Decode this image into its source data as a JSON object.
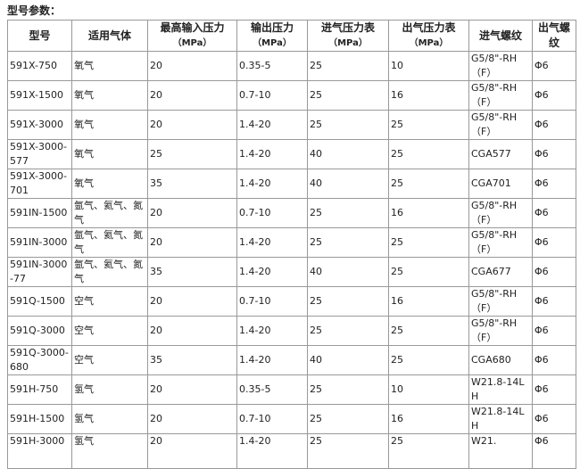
{
  "title": "型号参数：",
  "table": {
    "header": [
      [
        "型号"
      ],
      [
        "适用气体"
      ],
      [
        "最高输入压力",
        "（MPa）"
      ],
      [
        "输出压力",
        "（MPa）"
      ],
      [
        "进气压力表",
        "（MPa）"
      ],
      [
        "出气压力表",
        "（MPa）"
      ],
      [
        "进气螺纹"
      ],
      [
        "出气螺纹"
      ]
    ],
    "rows": [
      [
        "591X-750",
        "氧气",
        "20",
        "0.35-5",
        "25",
        "10",
        "G5/8\"-RH（F）",
        "Φ6"
      ],
      [
        "591X-1500",
        "氧气",
        "20",
        "0.7-10",
        "25",
        "16",
        "G5/8\"-RH（F）",
        "Φ6"
      ],
      [
        "591X-3000",
        "氧气",
        "20",
        "1.4-20",
        "25",
        "25",
        "G5/8\"-RH（F）",
        "Φ6"
      ],
      [
        "591X-3000-577",
        "氧气",
        "25",
        "1.4-20",
        "40",
        "25",
        "CGA577",
        "Φ6"
      ],
      [
        "591X-3000-701",
        "氧气",
        "35",
        "1.4-20",
        "40",
        "25",
        "CGA701",
        "Φ6"
      ],
      [
        "591IN-1500",
        "氩气、氦气、氮气",
        "20",
        "0.7-10",
        "25",
        "16",
        "G5/8\"-RH（F）",
        "Φ6"
      ],
      [
        "591IN-3000",
        "氩气、氦气、氮气",
        "20",
        "1.4-20",
        "25",
        "25",
        "G5/8\"-RH（F）",
        "Φ6"
      ],
      [
        "591IN-3000-77",
        "氩气、氦气、氮气",
        "35",
        "1.4-20",
        "40",
        "25",
        "CGA677",
        "Φ6"
      ],
      [
        "591Q-1500",
        "空气",
        "20",
        "0.7-10",
        "25",
        "16",
        "G5/8\"-RH（F）",
        "Φ6"
      ],
      [
        "591Q-3000",
        "空气",
        "20",
        "1.4-20",
        "25",
        "25",
        "G5/8\"-RH（F）",
        "Φ6"
      ],
      [
        "591Q-3000-680",
        "空气",
        "35",
        "1.4-20",
        "40",
        "25",
        "CGA680",
        "Φ6"
      ],
      [
        "591H-750",
        "氢气",
        "20",
        "0.35-5",
        "25",
        "10",
        "W21.8-14LH",
        "Φ6"
      ],
      [
        "591H-1500",
        "氢气",
        "20",
        "0.7-10",
        "25",
        "16",
        "W21.8-14LH",
        "Φ6"
      ],
      [
        "591H-3000",
        "氢气",
        "20",
        "1.4-20",
        "25",
        "25",
        "W21.",
        "Φ6"
      ]
    ]
  }
}
